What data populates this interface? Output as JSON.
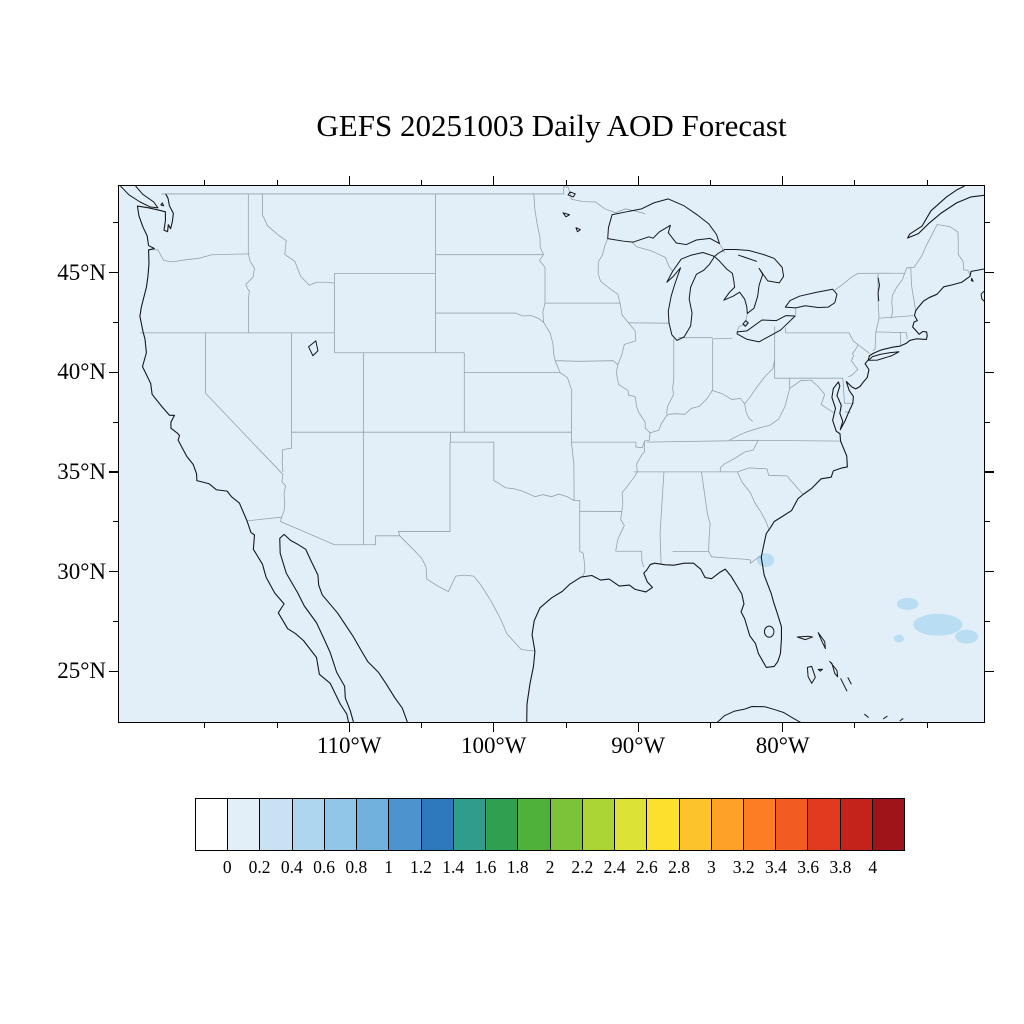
{
  "title": "GEFS 20251003 Daily AOD Forecast",
  "map": {
    "lat_labels": [
      "45°N",
      "40°N",
      "35°N",
      "30°N",
      "25°N"
    ],
    "lon_labels": [
      "110°W",
      "100°W",
      "90°W",
      "80°W"
    ],
    "background_color": "#e2eff8",
    "aod_patch_color": "#b9ddf3",
    "coastline_color": "#15181c",
    "state_border_color": "#94a2ad"
  },
  "colorbar": {
    "tick_labels": [
      "0",
      "0.2",
      "0.4",
      "0.6",
      "0.8",
      "1",
      "1.2",
      "1.4",
      "1.6",
      "1.8",
      "2",
      "2.2",
      "2.4",
      "2.6",
      "2.8",
      "3",
      "3.2",
      "3.4",
      "3.6",
      "3.8",
      "4"
    ],
    "colors": [
      "#ffffff",
      "#e2eff8",
      "#c8e2f4",
      "#aed6ef",
      "#92c6e8",
      "#71b1de",
      "#4d94ce",
      "#2e79be",
      "#2f9c8c",
      "#2fa04f",
      "#4fb03a",
      "#7cc33a",
      "#abd435",
      "#dce335",
      "#fbe02e",
      "#fdc32c",
      "#fda129",
      "#fb7e25",
      "#f25b22",
      "#e03a1f",
      "#c4231b",
      "#9e1418"
    ]
  }
}
